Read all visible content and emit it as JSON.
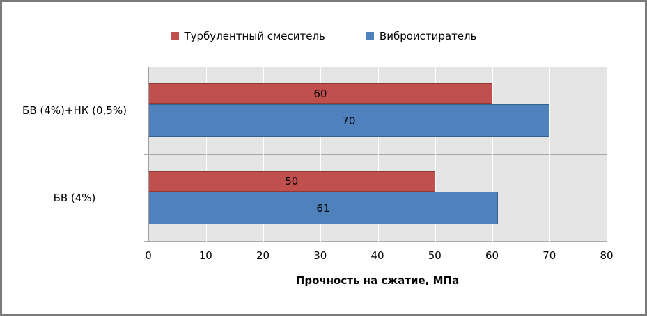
{
  "chart_data": {
    "type": "bar",
    "orientation": "horizontal",
    "categories": [
      "БВ (4%)+НК (0,5%)",
      "БВ (4%)"
    ],
    "series": [
      {
        "name": "Турбулентный смеситель",
        "color": "#C0504D",
        "border": "#953734",
        "values": [
          60,
          50
        ]
      },
      {
        "name": "Виброистиратель",
        "color": "#4F81BD",
        "border": "#36608E",
        "values": [
          70,
          61
        ]
      }
    ],
    "xlabel": "Прочность на сжатие, МПа",
    "xlim": [
      0,
      80
    ],
    "xticks": [
      0,
      10,
      20,
      30,
      40,
      50,
      60,
      70,
      80
    ],
    "grid": true,
    "grid_color": "#FFFFFF",
    "plot_background": "#E5E5E5",
    "legend_position": "top",
    "data_labels": true
  }
}
